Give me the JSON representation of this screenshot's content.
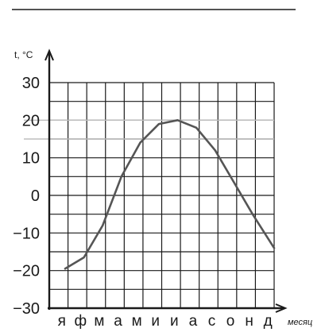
{
  "chart_data": {
    "type": "line",
    "title": "",
    "ylabel": "t, °C",
    "xlabel": "месяц",
    "categories": [
      "я",
      "ф",
      "м",
      "а",
      "м",
      "и",
      "и",
      "а",
      "с",
      "о",
      "н",
      "д"
    ],
    "values": [
      -19.5,
      -16.5,
      -8,
      5,
      14,
      19,
      20,
      18,
      12,
      3.5,
      -5,
      -14
    ],
    "ylim": [
      -30,
      30
    ],
    "yticks": [
      30,
      20,
      10,
      0,
      -10,
      -20,
      -30
    ],
    "grid": true,
    "line_color": "#555555",
    "grid_color": "#1a1a1a",
    "highlight_lines": [
      20,
      15
    ]
  }
}
